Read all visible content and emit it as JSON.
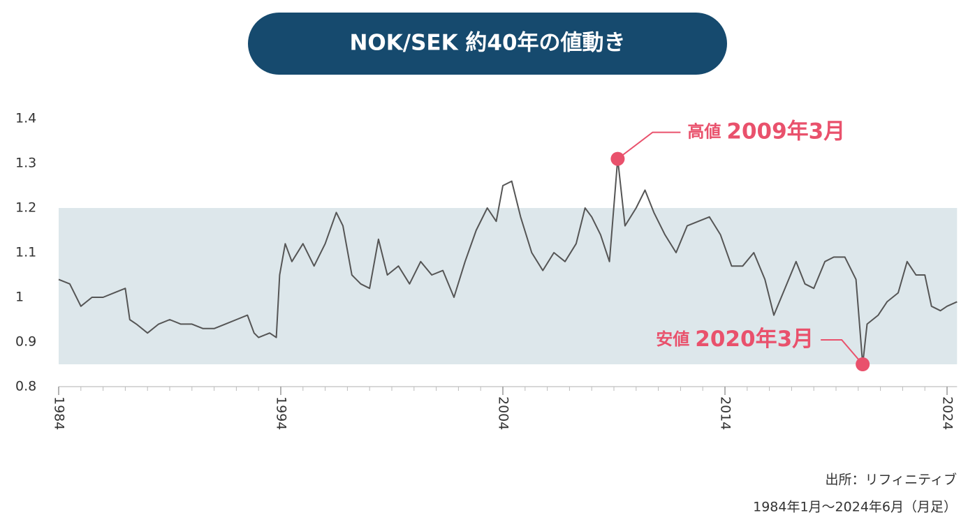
{
  "chart_data": {
    "type": "line",
    "title": "NOK/SEK 約40年の値動き",
    "x": [
      1984.0,
      1984.5,
      1985.0,
      1985.5,
      1986.0,
      1986.5,
      1987.0,
      1987.2,
      1987.5,
      1988.0,
      1988.5,
      1989.0,
      1989.5,
      1990.0,
      1990.5,
      1991.0,
      1991.5,
      1992.0,
      1992.5,
      1992.8,
      1993.0,
      1993.5,
      1993.8,
      1993.95,
      1994.2,
      1994.5,
      1995.0,
      1995.5,
      1996.0,
      1996.5,
      1996.8,
      1997.2,
      1997.6,
      1998.0,
      1998.4,
      1998.8,
      1999.3,
      1999.8,
      2000.3,
      2000.8,
      2001.3,
      2001.8,
      2002.3,
      2002.8,
      2003.3,
      2003.7,
      2004.0,
      2004.4,
      2004.8,
      2005.3,
      2005.8,
      2006.3,
      2006.8,
      2007.3,
      2007.7,
      2008.0,
      2008.4,
      2008.8,
      2009.17,
      2009.5,
      2010.0,
      2010.4,
      2010.8,
      2011.3,
      2011.8,
      2012.3,
      2012.8,
      2013.3,
      2013.8,
      2014.3,
      2014.8,
      2015.3,
      2015.8,
      2016.2,
      2016.7,
      2017.2,
      2017.6,
      2018.0,
      2018.5,
      2018.9,
      2019.4,
      2019.9,
      2020.2,
      2020.4,
      2020.9,
      2021.3,
      2021.8,
      2022.2,
      2022.6,
      2023.0,
      2023.3,
      2023.7,
      2024.0,
      2024.45
    ],
    "series": [
      {
        "name": "NOK/SEK",
        "color": "#555555",
        "values": [
          1.04,
          1.03,
          0.98,
          1.0,
          1.0,
          1.01,
          1.02,
          0.95,
          0.94,
          0.92,
          0.94,
          0.95,
          0.94,
          0.94,
          0.93,
          0.93,
          0.94,
          0.95,
          0.96,
          0.92,
          0.91,
          0.92,
          0.91,
          1.05,
          1.12,
          1.08,
          1.12,
          1.07,
          1.12,
          1.19,
          1.16,
          1.05,
          1.03,
          1.02,
          1.13,
          1.05,
          1.07,
          1.03,
          1.08,
          1.05,
          1.06,
          1.0,
          1.08,
          1.15,
          1.2,
          1.17,
          1.25,
          1.26,
          1.18,
          1.1,
          1.06,
          1.1,
          1.08,
          1.12,
          1.2,
          1.18,
          1.14,
          1.08,
          1.31,
          1.16,
          1.2,
          1.24,
          1.19,
          1.14,
          1.1,
          1.16,
          1.17,
          1.18,
          1.14,
          1.07,
          1.07,
          1.1,
          1.04,
          0.96,
          1.02,
          1.08,
          1.03,
          1.02,
          1.08,
          1.09,
          1.09,
          1.04,
          0.85,
          0.94,
          0.96,
          0.99,
          1.01,
          1.08,
          1.05,
          1.05,
          0.98,
          0.97,
          0.98,
          0.99
        ]
      }
    ],
    "xlim": [
      1984,
      2024.45
    ],
    "xticks": [
      1984,
      1994,
      2004,
      2014,
      2024
    ],
    "ylim": [
      0.8,
      1.4
    ],
    "yticks": [
      0.8,
      0.9,
      1.0,
      1.1,
      1.2,
      1.3,
      1.4
    ],
    "band": [
      0.85,
      1.2
    ],
    "band_color": "#dde7eb",
    "annotations": [
      {
        "label": "高値",
        "date": "2009年3月",
        "x": 2009.17,
        "y": 1.31
      },
      {
        "label": "安値",
        "date": "2020年3月",
        "x": 2020.2,
        "y": 0.85
      }
    ],
    "annotation_color": "#e9516c",
    "source": "出所：リフィニティブ",
    "period": "1984年1月～2024年6月（月足）"
  }
}
